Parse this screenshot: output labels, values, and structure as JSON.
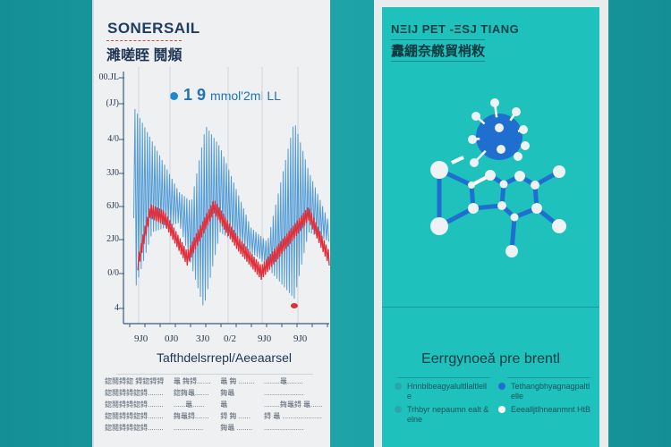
{
  "left_panel": {
    "title": "SONERSAIL",
    "subtitle": "濉嗟眰 鬩頫",
    "legend": {
      "value": "1 9",
      "unit": "mmol'2ml LL"
    },
    "table_title": "Tafthdelsrrepl/Aeeaarsel",
    "table_rows": [
      [
        "鍃鬩鍀鍃 鍀鍃鍀鍀",
        "鼂 鋂鍀.......",
        "鼂 鋂 ........",
        "........鼂........"
      ],
      [
        "鍃鬩鍀鍀鍃鍀........",
        "鍃鋂鼂.......",
        "鋂鼂",
        "...................."
      ],
      [
        "鍃鬩鍀鍀鍃鍀........",
        "......鼂......",
        "鼂",
        "........鋂鼂鍀 鼂......"
      ],
      [
        "鍃鬩鍀鍀鍃鍀........",
        "鋂鼂鍀.......",
        "鍀 鋂 ......",
        "鍀 鼂 ...................."
      ],
      [
        "鍃鬩鍀鍀鍃鍀........",
        "...............",
        "鋂鼂 ........",
        "...................."
      ]
    ]
  },
  "chart_data": {
    "type": "line",
    "title": "",
    "legend_label": "1 9 mmol'2ml LL",
    "xlabel": "Tafthdelsrrepl/Aeeaarsel",
    "ylabel": "",
    "xlim": [
      0,
      100
    ],
    "ylim": [
      0,
      100
    ],
    "y_tick_labels": [
      "00.JL",
      "(JJ)",
      "4/0",
      "3J0",
      "6J0",
      "2J0",
      "0/0",
      "4"
    ],
    "x_tick_labels": [
      "9J0",
      "0J0",
      "3J0",
      "0/2",
      "9J0",
      "9J0"
    ],
    "grid": "vertical",
    "series": [
      {
        "name": "blue-upper-envelope",
        "color": "#1e7fcc",
        "x": [
          5,
          10,
          27,
          33,
          40,
          47,
          62,
          70,
          83,
          90,
          100
        ],
        "y": [
          87,
          79,
          51,
          47,
          79,
          70,
          36,
          30,
          81,
          60,
          38
        ]
      },
      {
        "name": "blue-lower-envelope",
        "color": "#1e7fcc",
        "x": [
          5,
          6,
          14,
          27,
          39,
          47,
          66,
          83,
          90,
          100
        ],
        "y": [
          40,
          11,
          34,
          38,
          2,
          34,
          23,
          6,
          34,
          30
        ]
      },
      {
        "name": "red",
        "color": "#e0303c",
        "x": [
          7,
          13,
          20,
          31,
          44,
          55,
          67,
          79,
          90,
          100
        ],
        "y": [
          21,
          43,
          40,
          23,
          45,
          30,
          17,
          30,
          42,
          23
        ]
      }
    ],
    "annotations": [
      {
        "type": "red-dot",
        "x": 83,
        "y": 3
      }
    ]
  },
  "right_panel": {
    "title": "NΞIJ PET -ΞSJ TIANG",
    "subtitle": "纛綳奈艞貿梢敉",
    "heading": "Eerrgynoeǎ pre brentl",
    "legend": [
      {
        "label": "Hnnblbeagyalultllaltlelle",
        "color": "#2aa6aa"
      },
      {
        "label": "Trhbyr nepaumn ealt & elne",
        "color": "#2aa6aa"
      },
      {
        "label": "Tethangbhyagnagpaltlelle",
        "color": "#1e6fd6"
      },
      {
        "label": "Eeealljtlhneanmnt HtB",
        "color": "#ffffff"
      }
    ]
  }
}
